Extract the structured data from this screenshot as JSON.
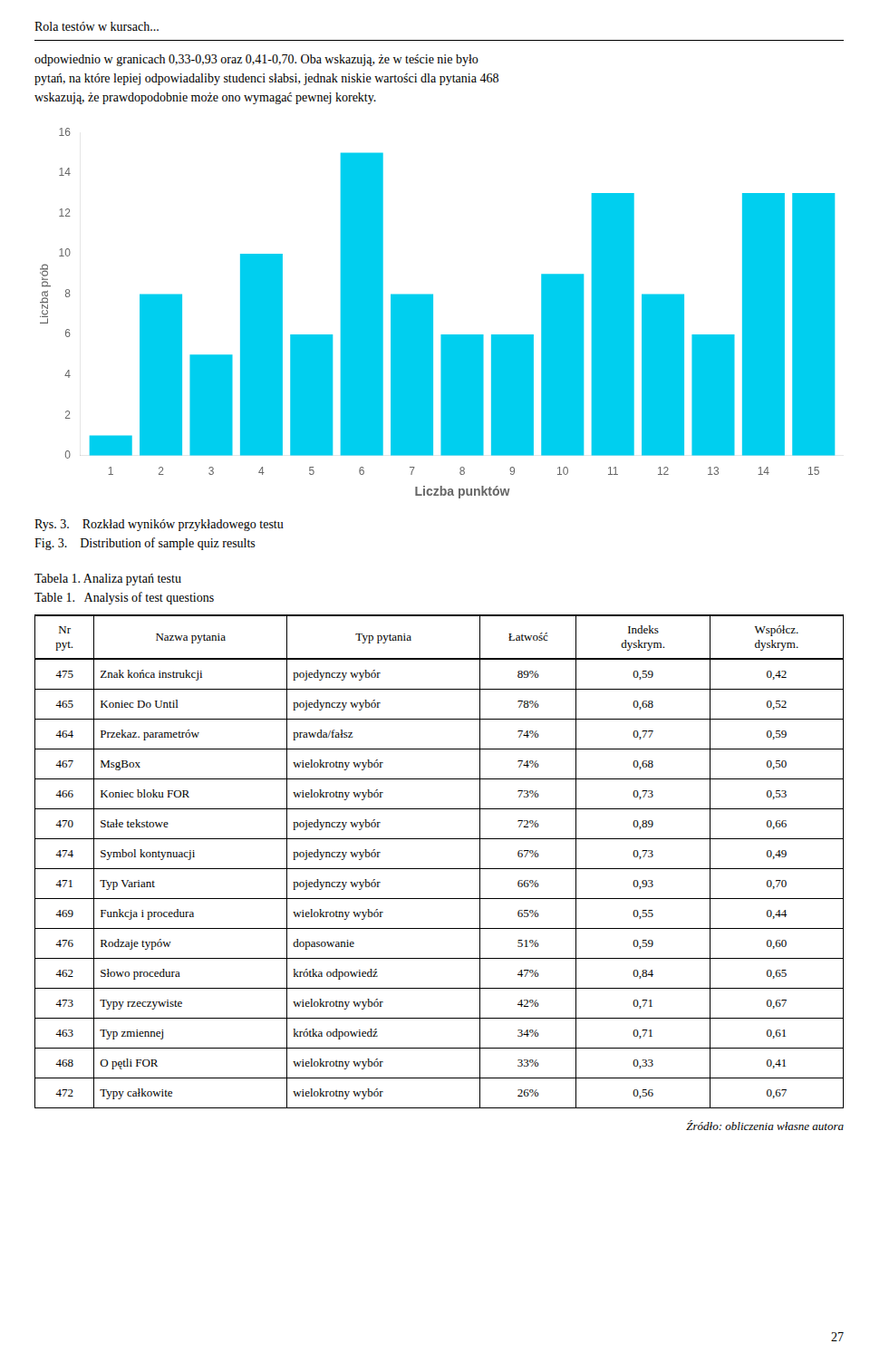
{
  "chart_data": {
    "type": "bar",
    "x": [
      1,
      2,
      3,
      4,
      5,
      6,
      7,
      8,
      9,
      10,
      11,
      12,
      13,
      14,
      15
    ],
    "values": [
      1,
      8,
      5,
      10,
      6,
      15,
      8,
      6,
      6,
      9,
      13,
      8,
      6,
      13,
      13
    ],
    "color": "#00CFEF",
    "xlabel": "Liczba punktów",
    "ylabel": "Liczba prób",
    "xlim": [
      0.4,
      15.6
    ],
    "xticks": [
      1,
      2,
      3,
      4,
      5,
      6,
      7,
      8,
      9,
      10,
      11,
      12,
      13,
      14,
      15
    ],
    "ylim": [
      0,
      16
    ],
    "yticks": [
      0,
      2,
      4,
      6,
      8,
      10,
      12,
      14,
      16
    ],
    "grid": false
  },
  "page": {
    "header": "Rola testów w kursach...",
    "body_text": [
      "odpowiednio w granicach 0,33-0,93 oraz 0,41-0,70. Oba wskazują, że w teście nie było",
      "pytań, na które lepiej odpowiadaliby studenci słabsi, jednak niskie wartości dla pytania 468",
      "wskazują, że prawdopodobnie może ono wymagać pewnej korekty."
    ],
    "figure_captions": [
      "Rys. 3.    Rozkład wyników przykładowego testu",
      "Fig. 3.    Distribution of sample quiz results"
    ],
    "table_captions": [
      "Tabela 1. Analiza pytań testu",
      "Table 1.   Analysis of test questions"
    ],
    "table_headers": [
      "Nr\npyt.",
      "Nazwa pytania",
      "Typ pytania",
      "Łatwość",
      "Indeks\ndyskrym.",
      "Współcz.\ndyskrym."
    ],
    "table_rows": [
      [
        "475",
        "Znak końca instrukcji",
        "pojedynczy wybór",
        "89%",
        "0,59",
        "0,42"
      ],
      [
        "465",
        "Koniec Do Until",
        "pojedynczy wybór",
        "78%",
        "0,68",
        "0,52"
      ],
      [
        "464",
        "Przekaz. parametrów",
        "prawda/fałsz",
        "74%",
        "0,77",
        "0,59"
      ],
      [
        "467",
        "MsgBox",
        "wielokrotny wybór",
        "74%",
        "0,68",
        "0,50"
      ],
      [
        "466",
        "Koniec bloku FOR",
        "wielokrotny wybór",
        "73%",
        "0,73",
        "0,53"
      ],
      [
        "470",
        "Stałe tekstowe",
        "pojedynczy wybór",
        "72%",
        "0,89",
        "0,66"
      ],
      [
        "474",
        "Symbol kontynuacji",
        "pojedynczy wybór",
        "67%",
        "0,73",
        "0,49"
      ],
      [
        "471",
        "Typ Variant",
        "pojedynczy wybór",
        "66%",
        "0,93",
        "0,70"
      ],
      [
        "469",
        "Funkcja i procedura",
        "wielokrotny wybór",
        "65%",
        "0,55",
        "0,44"
      ],
      [
        "476",
        "Rodzaje typów",
        "dopasowanie",
        "51%",
        "0,59",
        "0,60"
      ],
      [
        "462",
        "Słowo procedura",
        "krótka odpowiedź",
        "47%",
        "0,84",
        "0,65"
      ],
      [
        "473",
        "Typy rzeczywiste",
        "wielokrotny wybór",
        "42%",
        "0,71",
        "0,67"
      ],
      [
        "463",
        "Typ zmiennej",
        "krótka odpowiedź",
        "34%",
        "0,71",
        "0,61"
      ],
      [
        "468",
        "O pętli FOR",
        "wielokrotny wybór",
        "33%",
        "0,33",
        "0,41"
      ],
      [
        "472",
        "Typy całkowite",
        "wielokrotny wybór",
        "26%",
        "0,56",
        "0,67"
      ]
    ],
    "source_note": "Źródło: obliczenia własne autora",
    "page_number": "27"
  }
}
